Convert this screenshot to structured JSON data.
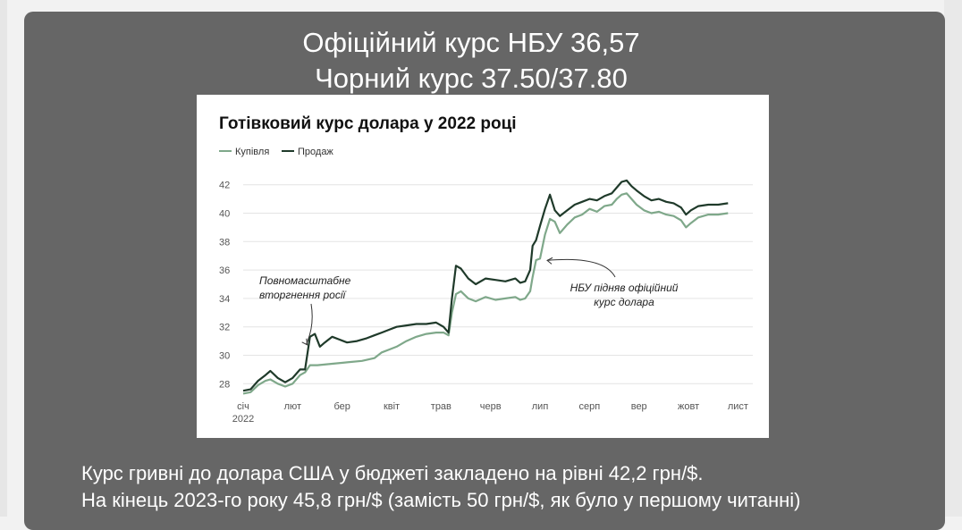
{
  "headline": {
    "official": "Офіційний курс НБУ 36,57",
    "black": "Чорний курс 37.50/37.80"
  },
  "caption": {
    "line1": "Курс гривні до долара США у бюджеті закладено на рівні 42,2 грн/$.",
    "line2": "На кінець 2023-го року 45,8 грн/$ (замість 50 грн/$, як було у першому читанні)"
  },
  "colors": {
    "slide_background": "#666666",
    "buy": "#7fa88a",
    "sell": "#1f3a2a"
  },
  "chart_data": {
    "type": "line",
    "title": "Готівковий курс долара у 2022 році",
    "xlabel": "",
    "ylabel": "",
    "x_ticks": [
      "січ",
      "лют",
      "бер",
      "квіт",
      "трав",
      "черв",
      "лип",
      "серп",
      "вер",
      "жовт",
      "лист"
    ],
    "x_tick_year": "2022",
    "y_ticks": [
      28,
      30,
      32,
      34,
      36,
      38,
      40,
      42
    ],
    "ylim": [
      27.2,
      42.8
    ],
    "xlim": [
      0.0,
      10.3
    ],
    "grid": true,
    "legend": "top-left",
    "series": [
      {
        "name": "Купівля",
        "color": "#7fa88a",
        "points": [
          [
            0.0,
            27.3
          ],
          [
            0.15,
            27.4
          ],
          [
            0.3,
            27.9
          ],
          [
            0.45,
            28.2
          ],
          [
            0.55,
            28.3
          ],
          [
            0.7,
            28.0
          ],
          [
            0.85,
            27.8
          ],
          [
            1.0,
            28.0
          ],
          [
            1.15,
            28.6
          ],
          [
            1.25,
            28.8
          ],
          [
            1.35,
            29.3
          ],
          [
            1.5,
            29.3
          ],
          [
            1.8,
            29.4
          ],
          [
            2.1,
            29.5
          ],
          [
            2.4,
            29.6
          ],
          [
            2.65,
            29.8
          ],
          [
            2.8,
            30.2
          ],
          [
            2.95,
            30.4
          ],
          [
            3.1,
            30.6
          ],
          [
            3.3,
            31.0
          ],
          [
            3.5,
            31.3
          ],
          [
            3.7,
            31.5
          ],
          [
            3.9,
            31.6
          ],
          [
            4.05,
            31.6
          ],
          [
            4.15,
            31.4
          ],
          [
            4.22,
            33.0
          ],
          [
            4.3,
            34.3
          ],
          [
            4.4,
            34.5
          ],
          [
            4.55,
            34.0
          ],
          [
            4.7,
            33.8
          ],
          [
            4.9,
            34.1
          ],
          [
            5.1,
            33.9
          ],
          [
            5.3,
            34.0
          ],
          [
            5.5,
            34.1
          ],
          [
            5.6,
            33.9
          ],
          [
            5.7,
            34.0
          ],
          [
            5.8,
            34.5
          ],
          [
            5.85,
            35.5
          ],
          [
            5.92,
            36.7
          ],
          [
            6.0,
            36.8
          ],
          [
            6.1,
            38.5
          ],
          [
            6.2,
            39.6
          ],
          [
            6.3,
            39.4
          ],
          [
            6.4,
            38.6
          ],
          [
            6.55,
            39.2
          ],
          [
            6.7,
            39.7
          ],
          [
            6.85,
            39.9
          ],
          [
            7.0,
            40.3
          ],
          [
            7.15,
            40.1
          ],
          [
            7.3,
            40.5
          ],
          [
            7.45,
            40.6
          ],
          [
            7.55,
            41.0
          ],
          [
            7.65,
            41.3
          ],
          [
            7.75,
            41.4
          ],
          [
            7.85,
            41.0
          ],
          [
            7.95,
            40.6
          ],
          [
            8.1,
            40.2
          ],
          [
            8.25,
            40.0
          ],
          [
            8.4,
            40.1
          ],
          [
            8.55,
            39.9
          ],
          [
            8.7,
            39.8
          ],
          [
            8.85,
            39.5
          ],
          [
            8.95,
            39.0
          ],
          [
            9.05,
            39.3
          ],
          [
            9.2,
            39.7
          ],
          [
            9.4,
            39.9
          ],
          [
            9.6,
            39.9
          ],
          [
            9.8,
            40.0
          ]
        ]
      },
      {
        "name": "Продаж",
        "color": "#1f3a2a",
        "points": [
          [
            0.0,
            27.5
          ],
          [
            0.15,
            27.6
          ],
          [
            0.3,
            28.2
          ],
          [
            0.45,
            28.6
          ],
          [
            0.55,
            28.9
          ],
          [
            0.7,
            28.4
          ],
          [
            0.85,
            28.1
          ],
          [
            1.0,
            28.4
          ],
          [
            1.15,
            29.0
          ],
          [
            1.25,
            29.0
          ],
          [
            1.35,
            31.3
          ],
          [
            1.45,
            31.5
          ],
          [
            1.55,
            30.6
          ],
          [
            1.65,
            30.9
          ],
          [
            1.8,
            31.3
          ],
          [
            1.95,
            31.1
          ],
          [
            2.1,
            30.9
          ],
          [
            2.3,
            31.0
          ],
          [
            2.5,
            31.2
          ],
          [
            2.65,
            31.4
          ],
          [
            2.8,
            31.6
          ],
          [
            2.95,
            31.8
          ],
          [
            3.1,
            32.0
          ],
          [
            3.3,
            32.1
          ],
          [
            3.5,
            32.2
          ],
          [
            3.7,
            32.2
          ],
          [
            3.9,
            32.3
          ],
          [
            4.05,
            32.0
          ],
          [
            4.15,
            31.6
          ],
          [
            4.22,
            34.0
          ],
          [
            4.3,
            36.3
          ],
          [
            4.4,
            36.1
          ],
          [
            4.55,
            35.4
          ],
          [
            4.7,
            35.0
          ],
          [
            4.9,
            35.4
          ],
          [
            5.1,
            35.3
          ],
          [
            5.3,
            35.2
          ],
          [
            5.5,
            35.4
          ],
          [
            5.6,
            35.1
          ],
          [
            5.7,
            35.2
          ],
          [
            5.8,
            36.0
          ],
          [
            5.85,
            37.7
          ],
          [
            5.92,
            38.1
          ],
          [
            6.0,
            39.1
          ],
          [
            6.1,
            40.3
          ],
          [
            6.2,
            41.3
          ],
          [
            6.3,
            40.2
          ],
          [
            6.4,
            39.8
          ],
          [
            6.55,
            40.2
          ],
          [
            6.7,
            40.6
          ],
          [
            6.85,
            40.8
          ],
          [
            7.0,
            41.0
          ],
          [
            7.15,
            40.9
          ],
          [
            7.3,
            41.2
          ],
          [
            7.45,
            41.4
          ],
          [
            7.55,
            41.8
          ],
          [
            7.65,
            42.2
          ],
          [
            7.75,
            42.3
          ],
          [
            7.85,
            41.9
          ],
          [
            7.95,
            41.6
          ],
          [
            8.1,
            41.2
          ],
          [
            8.25,
            40.9
          ],
          [
            8.4,
            41.0
          ],
          [
            8.55,
            40.8
          ],
          [
            8.7,
            40.7
          ],
          [
            8.85,
            40.4
          ],
          [
            8.95,
            39.9
          ],
          [
            9.05,
            40.2
          ],
          [
            9.2,
            40.5
          ],
          [
            9.4,
            40.6
          ],
          [
            9.6,
            40.6
          ],
          [
            9.8,
            40.7
          ]
        ]
      }
    ],
    "annotations": [
      {
        "text": [
          "Повномасштабне",
          "вторгнення росії"
        ],
        "x": 1.35,
        "y": 31.3
      },
      {
        "text": [
          "НБУ підняв офіційний",
          "курс долара"
        ],
        "x": 6.0,
        "y": 36.8
      }
    ]
  }
}
